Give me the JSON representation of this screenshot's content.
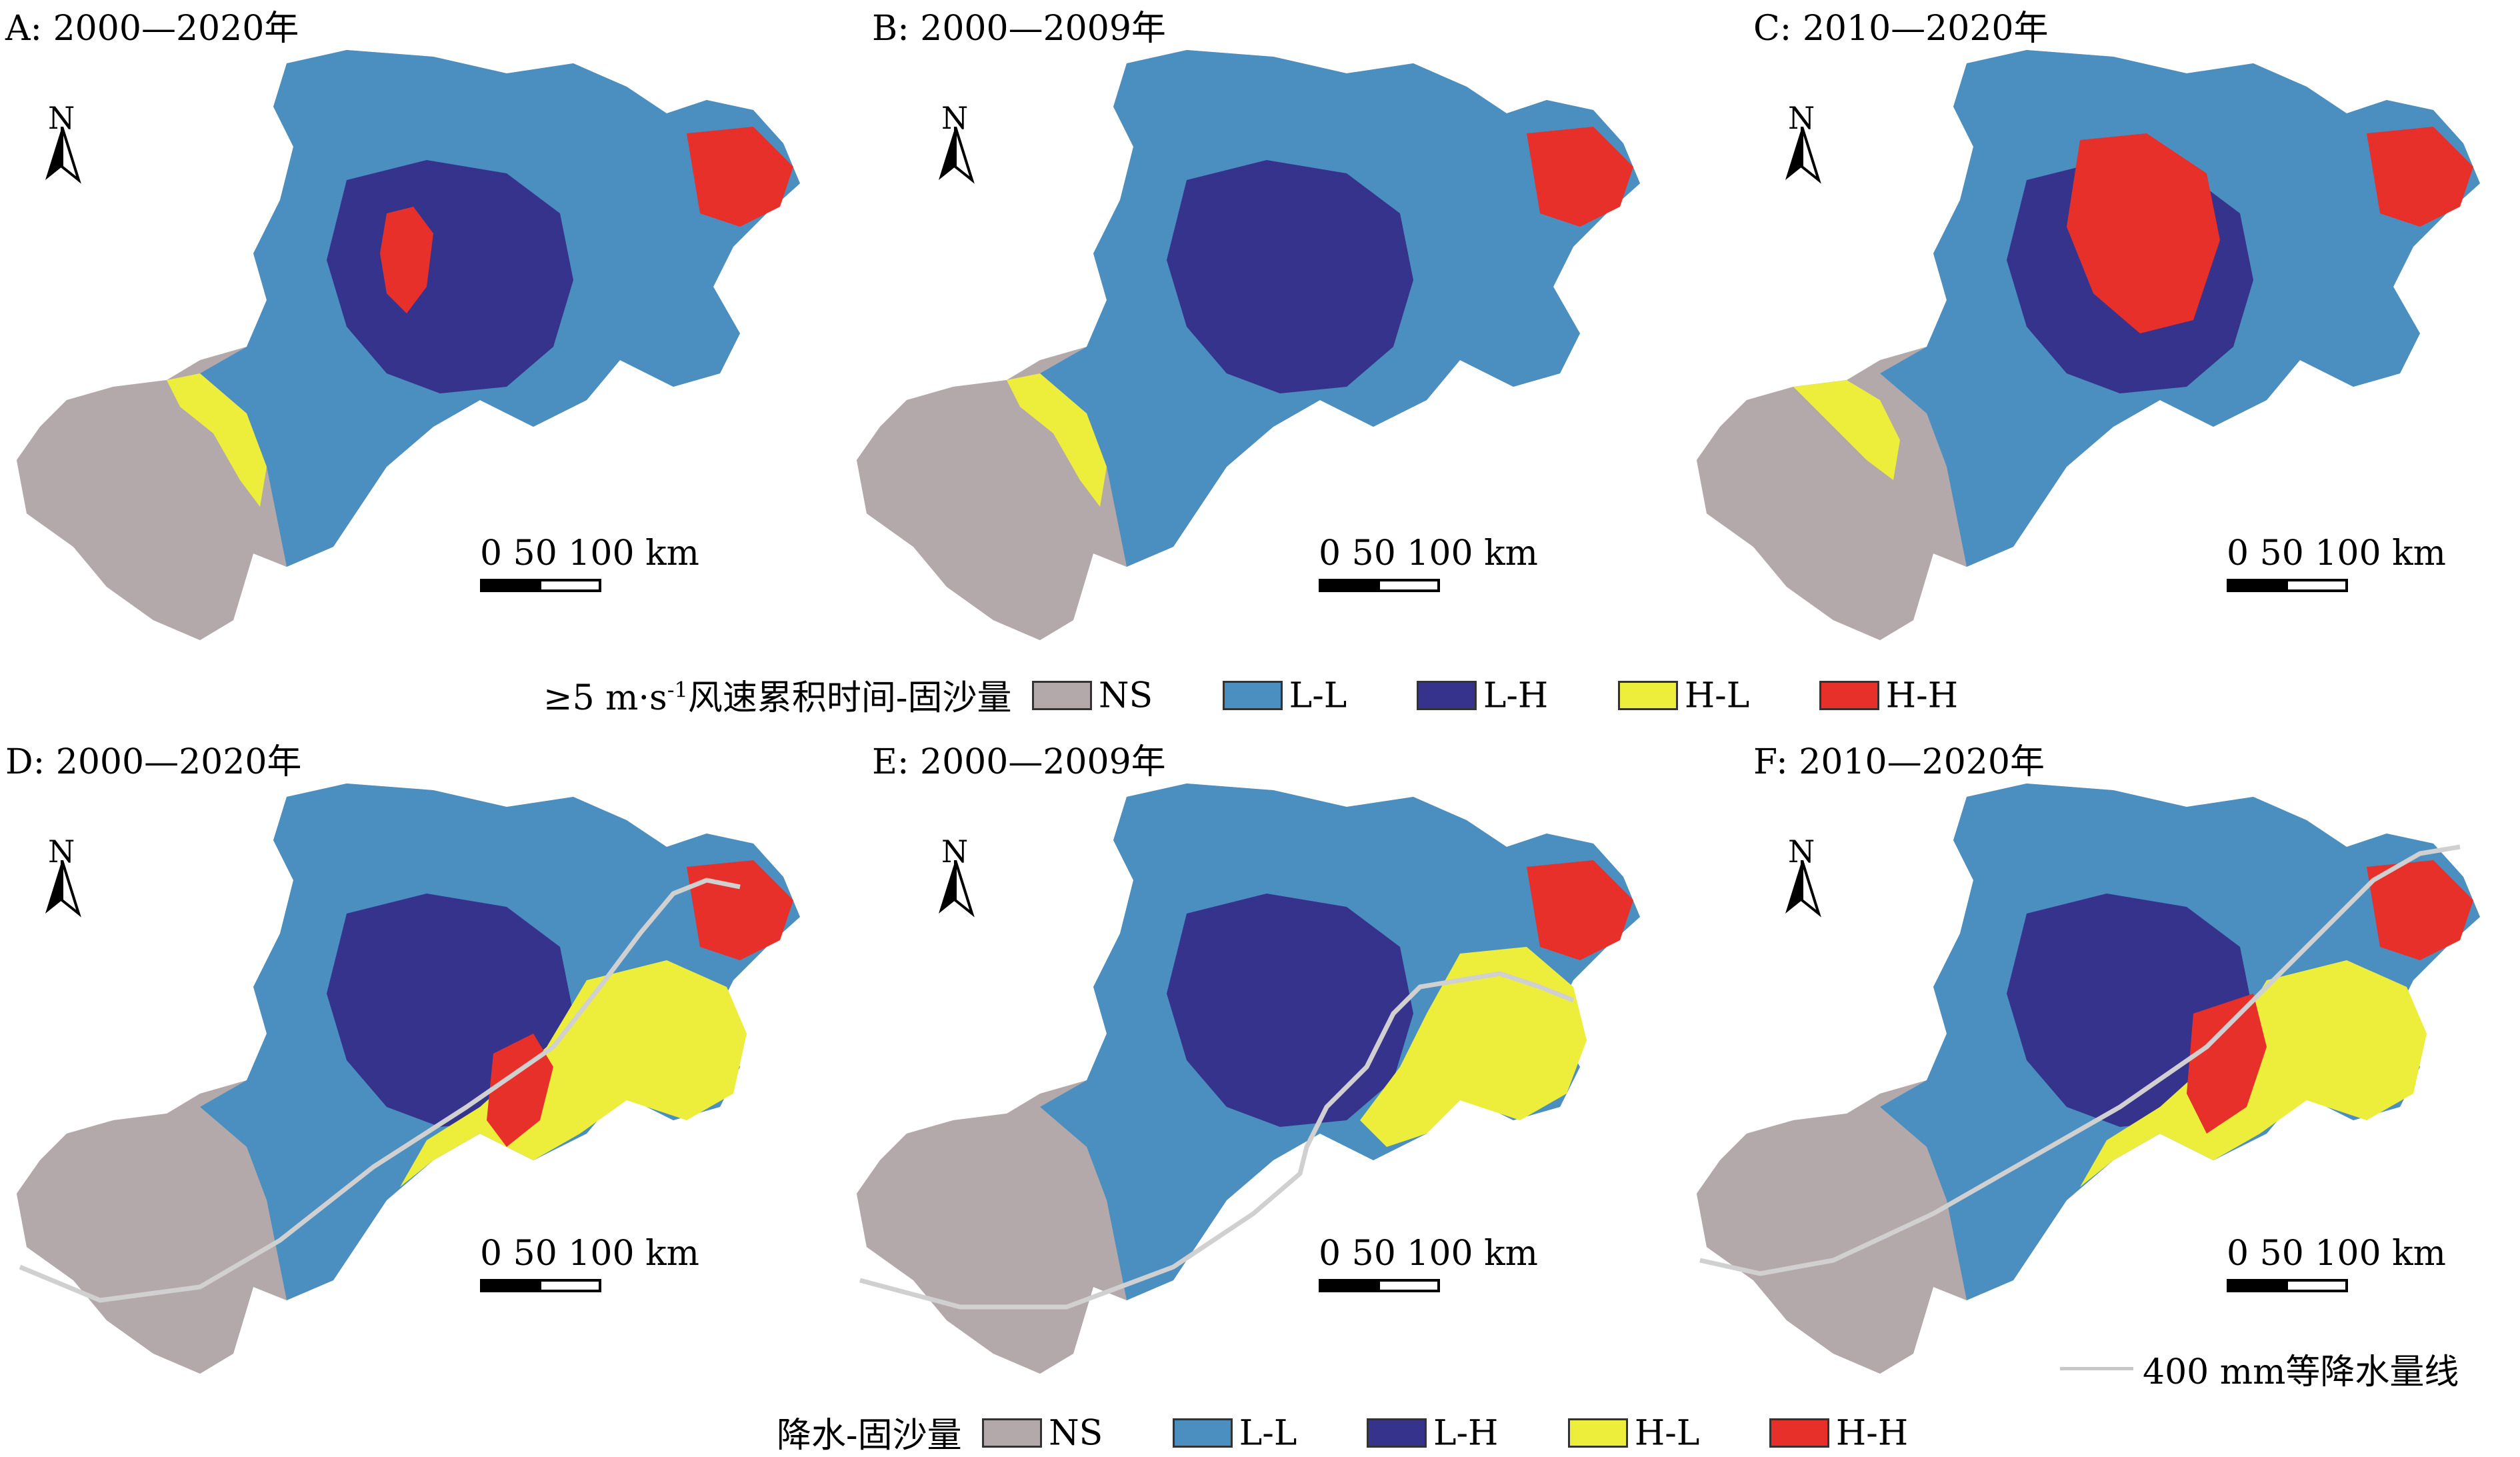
{
  "panels": [
    {
      "title": "A: 2000—2020年",
      "isoline": "none",
      "hh": "centerA",
      "hl": "west"
    },
    {
      "title": "B: 2000—2009年",
      "isoline": "none",
      "hh": "east",
      "hl": "west"
    },
    {
      "title": "C: 2010—2020年",
      "isoline": "none",
      "hh": "centerC",
      "hl": "westC"
    },
    {
      "title": "D: 2000—2020年",
      "isoline": "d",
      "hh": "ridgeD",
      "hl": "eastBig"
    },
    {
      "title": "E: 2000—2009年",
      "isoline": "e",
      "hh": "east",
      "hl": "eastBigE"
    },
    {
      "title": "F: 2010—2020年",
      "isoline": "f",
      "hh": "ridgeF",
      "hl": "eastBig"
    }
  ],
  "north_label": "N",
  "scale_label": "0   50 100 km",
  "legend_top": {
    "title_pre": "≥5 m·s",
    "title_sup": "-1",
    "title_post": "风速累积时间-固沙量",
    "items": [
      {
        "label": "NS",
        "color": "#b3a9aa"
      },
      {
        "label": "L-L",
        "color": "#4a8fc0"
      },
      {
        "label": "L-H",
        "color": "#35338c"
      },
      {
        "label": "H-L",
        "color": "#eded3b"
      },
      {
        "label": "H-H",
        "color": "#e8302a"
      }
    ]
  },
  "legend_bottom": {
    "title": "降水-固沙量",
    "items": [
      {
        "label": "NS",
        "color": "#b3a9aa"
      },
      {
        "label": "L-L",
        "color": "#4a8fc0"
      },
      {
        "label": "L-H",
        "color": "#35338c"
      },
      {
        "label": "H-L",
        "color": "#eded3b"
      },
      {
        "label": "H-H",
        "color": "#e8302a"
      }
    ]
  },
  "isoline_legend": {
    "label": "400 mm等降水量线",
    "color": "#d0d0d0"
  }
}
